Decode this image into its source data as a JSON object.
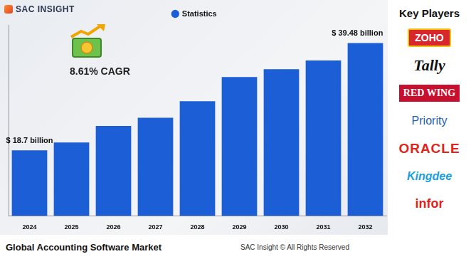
{
  "chart_data": {
    "type": "bar",
    "title": "Global Accounting Software Market",
    "categories": [
      "2024",
      "2025",
      "2026",
      "2027",
      "2028",
      "2029",
      "2030",
      "2031",
      "2032"
    ],
    "series": [
      {
        "name": "Statistics",
        "color": "#1c5ed6",
        "values": [
          18.7,
          20.2,
          23.4,
          25.0,
          28.2,
          32.9,
          34.4,
          36.1,
          39.48
        ],
        "value_labels": [
          "$ 18.7 billion",
          null,
          null,
          null,
          null,
          null,
          null,
          null,
          "$ 39.48 billion"
        ]
      }
    ],
    "ylim": [
      6,
      43
    ],
    "grid": false,
    "legend": "top",
    "data_labels": true,
    "tick_labels": "x",
    "annotations": [
      "8.61% CAGR"
    ]
  },
  "brand": "SAC INSIGHT",
  "key_players": {
    "title": "Key Players",
    "items": [
      "ZOHO",
      "Tally",
      "RED WING",
      "Priority",
      "ORACLE",
      "Kingdee",
      "infor"
    ]
  },
  "footer": "SAC Insight © All Rights Reserved"
}
